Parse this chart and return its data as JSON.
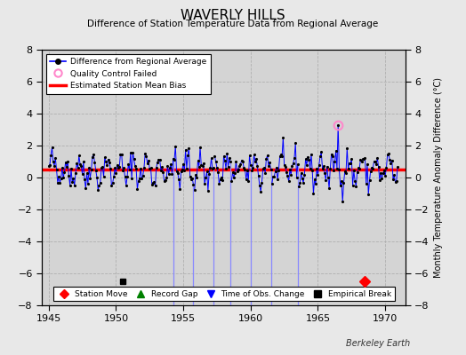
{
  "title": "WAVERLY HILLS",
  "subtitle": "Difference of Station Temperature Data from Regional Average",
  "ylabel_right": "Monthly Temperature Anomaly Difference (°C)",
  "xlim": [
    1944.5,
    1971.5
  ],
  "ylim": [
    -8,
    8
  ],
  "yticks": [
    -8,
    -6,
    -4,
    -2,
    0,
    2,
    4,
    6,
    8
  ],
  "xticks": [
    1945,
    1950,
    1955,
    1960,
    1965,
    1970
  ],
  "bias_level": 0.5,
  "background_color": "#e8e8e8",
  "plot_bg_color": "#d4d4d4",
  "grid_color": "#c0c0c0",
  "obs_change_years": [
    1954.25,
    1955.75,
    1957.25,
    1958.5,
    1960.0,
    1961.5,
    1963.5
  ],
  "station_move_x": 1968.5,
  "station_move_y": -6.5,
  "empirical_break_x": 1950.5,
  "empirical_break_y": -6.5,
  "qc_fail_x": 1966.5,
  "qc_fail_y": 3.3,
  "seed": 42,
  "bias_y": 0.5,
  "berkeley_earth_text": "Berkeley Earth",
  "data_start": 1945.0,
  "data_end": 1971.0
}
